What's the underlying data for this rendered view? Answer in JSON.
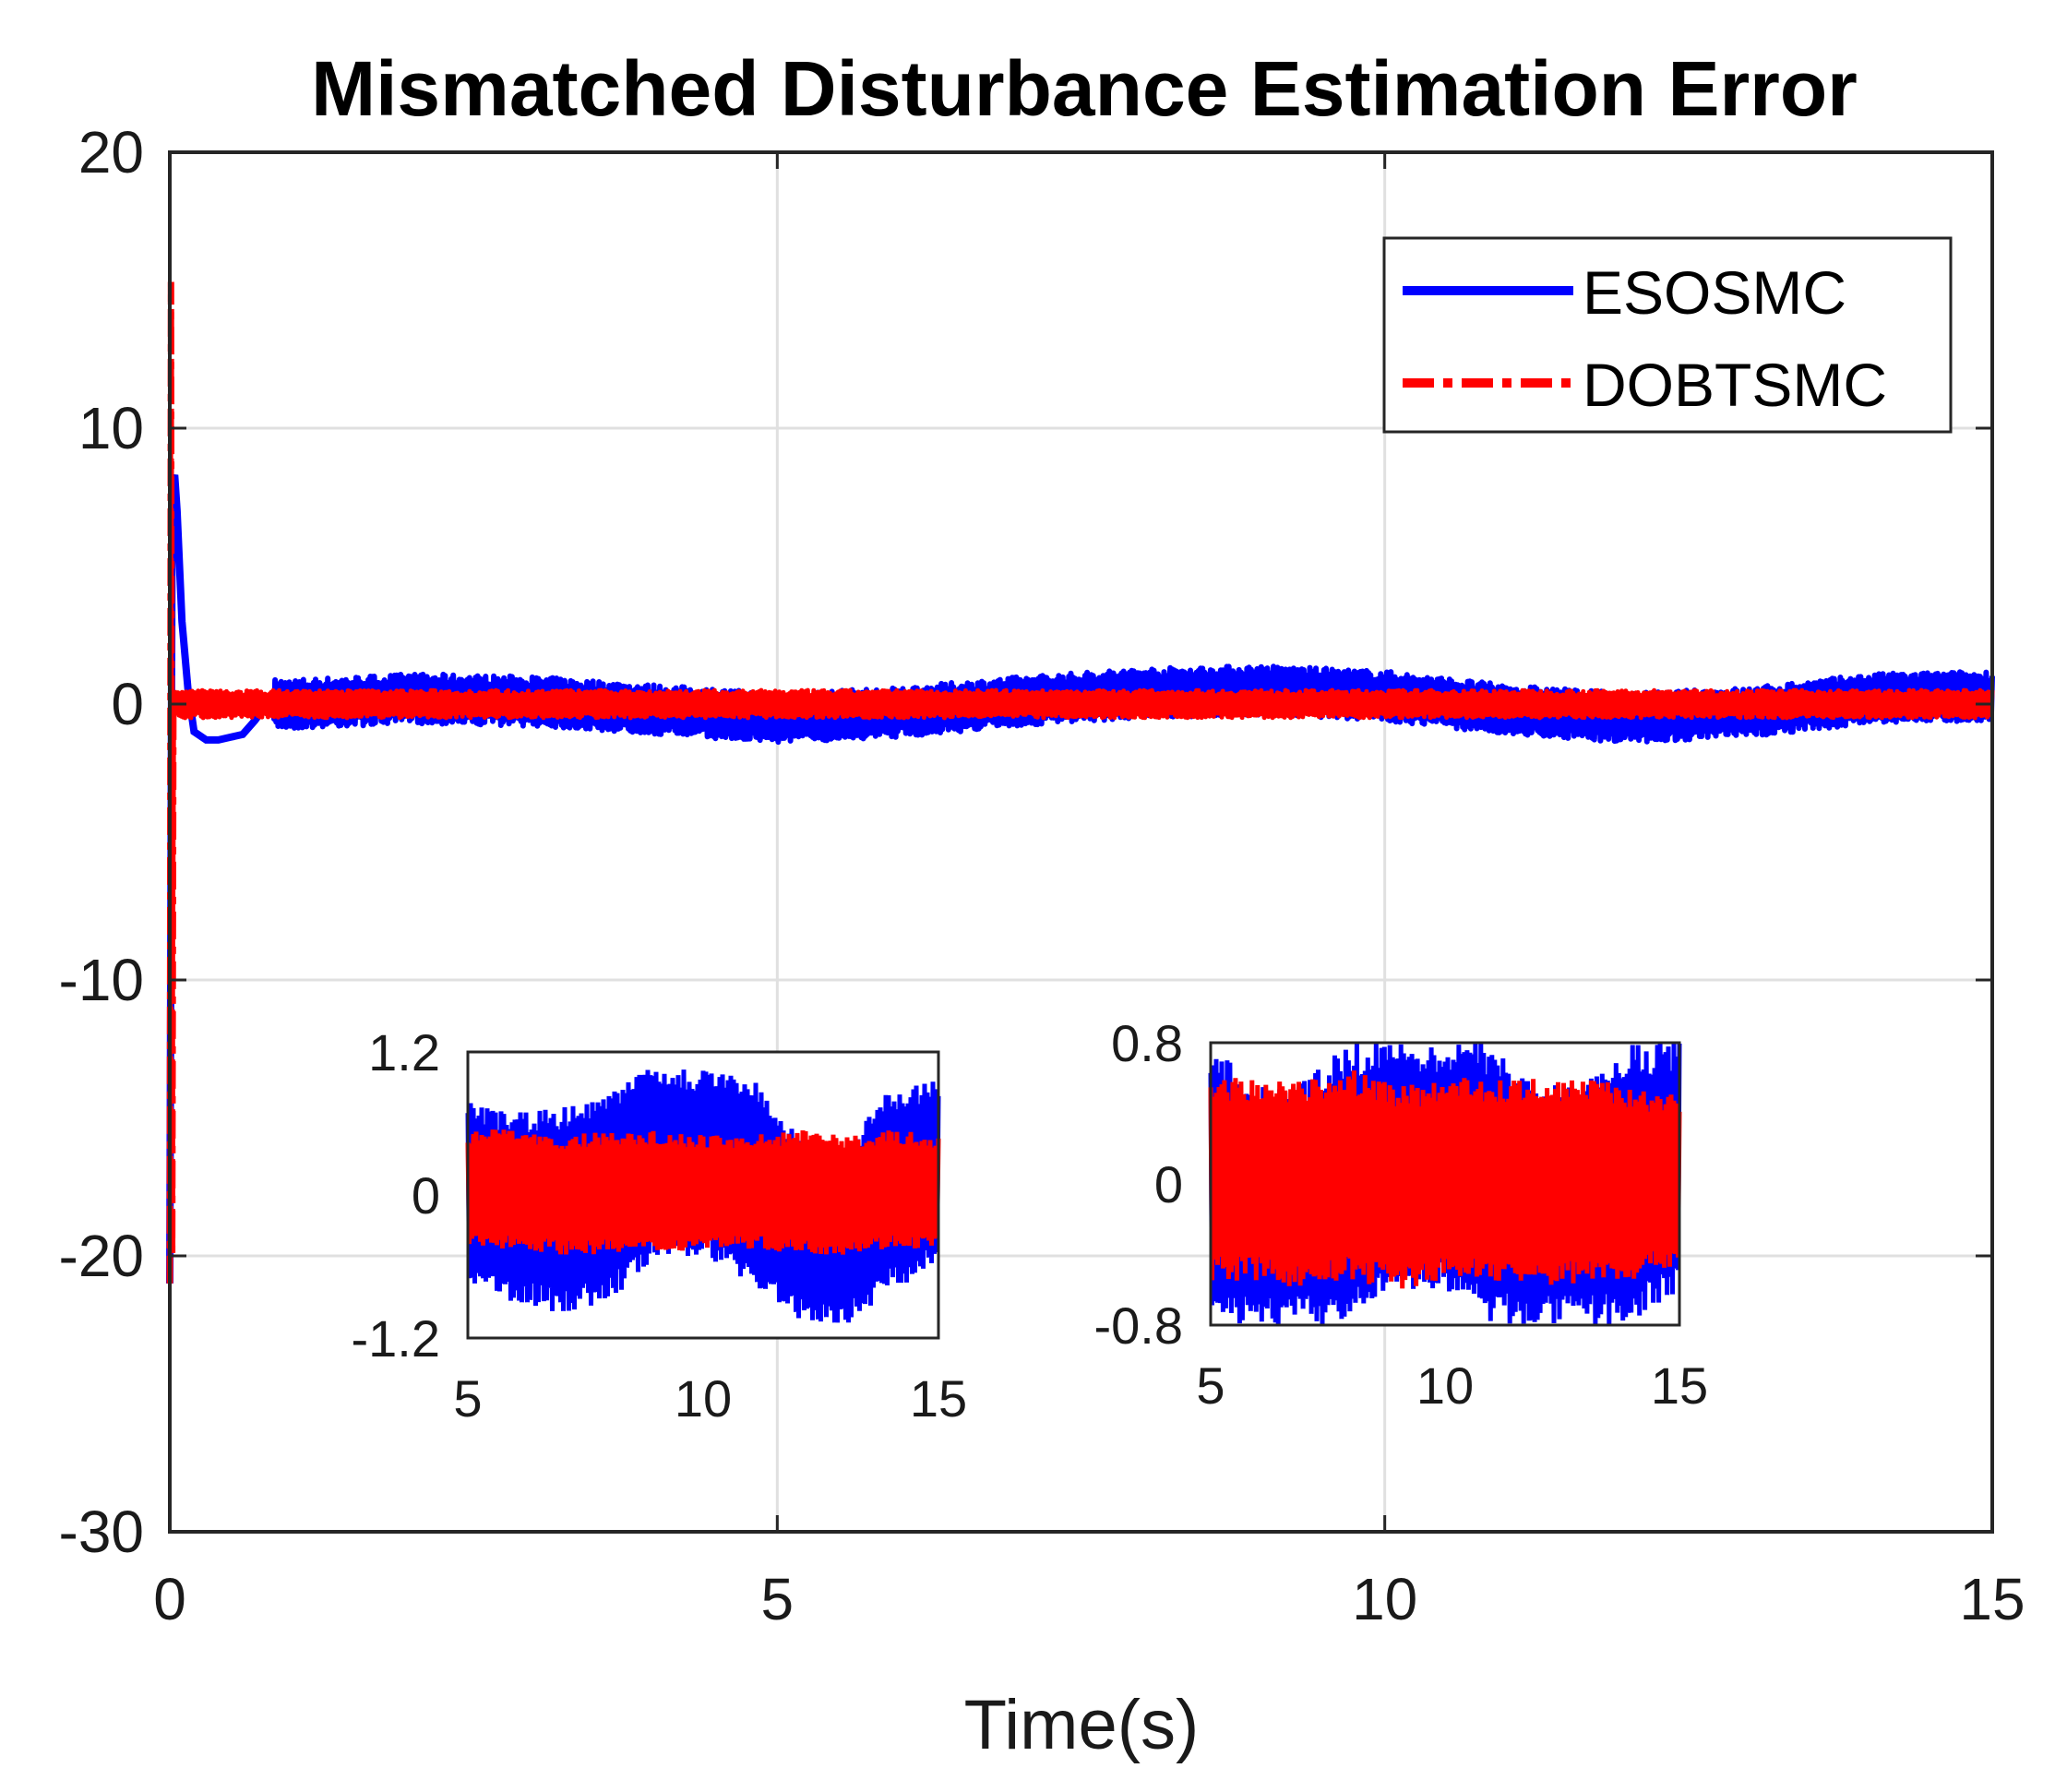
{
  "chart_data": {
    "type": "line",
    "title": "Mismatched Disturbance Estimation Error",
    "xlabel": "Time(s)",
    "ylabel": "",
    "xlim": [
      0,
      15
    ],
    "ylim": [
      -30,
      20
    ],
    "xticks": [
      "0",
      "5",
      "10",
      "15"
    ],
    "yticks": [
      "20",
      "10",
      "0",
      "-10",
      "-20",
      "-30"
    ],
    "grid": true,
    "legend_position": "top-right",
    "series": [
      {
        "name": "ESOSMC",
        "color": "#0000ff",
        "style": "solid",
        "x": [
          0,
          0.02,
          0.04,
          0.06,
          0.1,
          0.15,
          0.2,
          0.3,
          0.4,
          0.5,
          0.6,
          0.7,
          0.8,
          1,
          2,
          3,
          4,
          5,
          6,
          7,
          8,
          9,
          10,
          11,
          12,
          13,
          14,
          15
        ],
        "y": [
          -21,
          8,
          8.3,
          7,
          3,
          0.5,
          -1,
          -1.3,
          -1.3,
          -1.2,
          -1.1,
          -0.6,
          0,
          0,
          0.2,
          0.1,
          -0.2,
          -0.5,
          -0.3,
          0.1,
          0.4,
          0.5,
          0.3,
          -0.2,
          -0.5,
          -0.3,
          0.2,
          0.3
        ],
        "noise_band": 0.9
      },
      {
        "name": "DOBTSMC",
        "color": "#ff0000",
        "style": "dash-dot",
        "x": [
          0,
          0.01,
          0.02,
          0.03,
          0.05,
          0.1,
          1,
          5,
          10,
          15
        ],
        "y": [
          -21,
          15.3,
          -20,
          0.5,
          0,
          0,
          0,
          0,
          0,
          0
        ],
        "noise_band": 0.5
      }
    ],
    "insets": [
      {
        "name": "inset-1",
        "xlim": [
          5,
          15
        ],
        "ylim": [
          -1.2,
          1.2
        ],
        "xticks": [
          "5",
          "10",
          "15"
        ],
        "yticks": [
          "1.2",
          "0",
          "-1.2"
        ],
        "series": [
          {
            "name": "ESOSMC",
            "color": "#0000ff",
            "x": [
              5,
              6,
              7,
              8,
              9,
              10,
              11,
              12,
              13,
              14,
              15
            ],
            "upper": [
              0.8,
              0.7,
              0.75,
              0.9,
              1.1,
              1.05,
              1.0,
              0.5,
              0.4,
              0.9,
              1.0
            ],
            "lower": [
              -0.8,
              -0.9,
              -1.0,
              -0.9,
              -0.55,
              -0.5,
              -0.75,
              -1.05,
              -1.1,
              -0.8,
              -0.6
            ]
          },
          {
            "name": "DOBTSMC",
            "color": "#ff0000",
            "x": [
              5,
              6,
              7,
              8,
              9,
              10,
              11,
              12,
              13,
              14,
              15
            ],
            "upper": [
              0.55,
              0.55,
              0.5,
              0.55,
              0.55,
              0.5,
              0.5,
              0.55,
              0.5,
              0.55,
              0.5
            ],
            "lower": [
              -0.45,
              -0.45,
              -0.5,
              -0.5,
              -0.5,
              -0.45,
              -0.45,
              -0.5,
              -0.5,
              -0.45,
              -0.45
            ]
          }
        ]
      },
      {
        "name": "inset-2",
        "xlim": [
          5,
          15
        ],
        "ylim": [
          -0.8,
          0.8
        ],
        "xticks": [
          "5",
          "10",
          "15"
        ],
        "yticks": [
          "0.8",
          "0",
          "-0.8"
        ],
        "series": [
          {
            "name": "ESOSMC",
            "color": "#0000ff",
            "x": [
              5,
              6,
              7,
              8,
              9,
              10,
              11,
              12,
              13,
              14,
              15
            ],
            "upper": [
              0.8,
              0.55,
              0.6,
              0.8,
              0.8,
              0.8,
              0.8,
              0.55,
              0.6,
              0.8,
              0.8
            ],
            "lower": [
              -0.8,
              -0.8,
              -0.8,
              -0.8,
              -0.6,
              -0.6,
              -0.8,
              -0.8,
              -0.8,
              -0.8,
              -0.6
            ]
          },
          {
            "name": "DOBTSMC",
            "color": "#ff0000",
            "x": [
              5,
              6,
              7,
              8,
              9,
              10,
              11,
              12,
              13,
              14,
              15
            ],
            "upper": [
              0.6,
              0.6,
              0.6,
              0.65,
              0.55,
              0.6,
              0.6,
              0.6,
              0.6,
              0.55,
              0.5
            ],
            "lower": [
              -0.55,
              -0.55,
              -0.6,
              -0.55,
              -0.6,
              -0.55,
              -0.55,
              -0.6,
              -0.55,
              -0.55,
              -0.45
            ]
          }
        ]
      }
    ]
  }
}
